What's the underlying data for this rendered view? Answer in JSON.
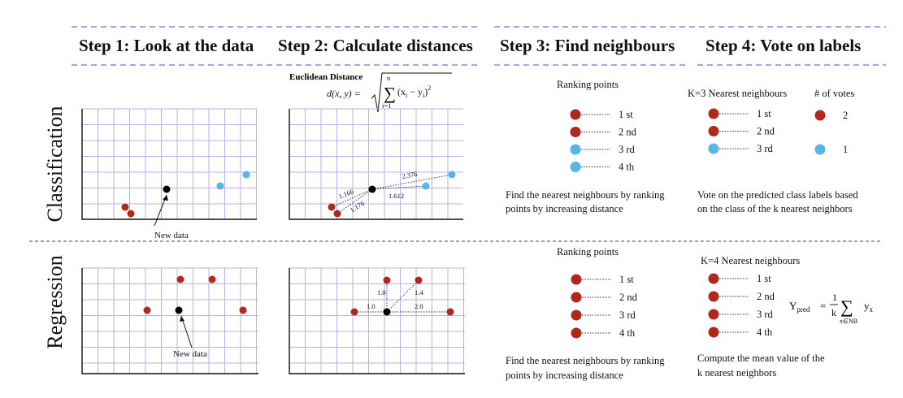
{
  "colors": {
    "red": "#b0271b",
    "blue": "#58b4e6",
    "black": "#000000",
    "grid": "#b7b2ea",
    "title_dash": "#8b86de"
  },
  "steps": [
    "Step 1: Look at the data",
    "Step 2: Calculate distances",
    "Step 3: Find neighbours",
    "Step 4: Vote on labels"
  ],
  "rows": {
    "classification": "Classification",
    "regression": "Regression"
  },
  "classification": {
    "new_data_label": "New data",
    "formula": {
      "title": "Euclidean Distance",
      "lhs": "d(x, y) =",
      "sum_top": "n",
      "sum_bottom": "i=1",
      "term": "(x",
      "term_sub1": "i",
      "term_mid": " − y",
      "term_sub2": "i",
      "term_end": ")",
      "power": "2"
    },
    "distances": [
      "1.166",
      "1.176",
      "1.612",
      "2.376"
    ],
    "ranking": {
      "title": "Ranking points",
      "items": [
        {
          "label": "1 st",
          "color": "red"
        },
        {
          "label": "2 nd",
          "color": "red"
        },
        {
          "label": "3 rd",
          "color": "blue"
        },
        {
          "label": "4 th",
          "color": "blue"
        }
      ],
      "caption": [
        "Find the nearest neighbours by ranking",
        "points by increasing distance"
      ]
    },
    "vote": {
      "title": "K=3 Nearest neighbours",
      "votes_title": "# of votes",
      "items": [
        {
          "label": "1 st",
          "color": "red"
        },
        {
          "label": "2 nd",
          "color": "red"
        },
        {
          "label": "3 rd",
          "color": "blue"
        }
      ],
      "votes": [
        {
          "color": "red",
          "count": "2"
        },
        {
          "color": "blue",
          "count": "1"
        }
      ],
      "caption": [
        "Vote on the predicted class labels based",
        "on the class of the k nearest neighbors"
      ]
    }
  },
  "regression": {
    "new_data_label": "New data",
    "distances": [
      "1.0",
      "1.4",
      "1.0",
      "2.0"
    ],
    "ranking": {
      "title": "Ranking points",
      "items": [
        {
          "label": "1 st",
          "color": "red"
        },
        {
          "label": "2 nd",
          "color": "red"
        },
        {
          "label": "3 rd",
          "color": "red"
        },
        {
          "label": "4 th",
          "color": "red"
        }
      ],
      "caption": [
        "Find the nearest neighbours by ranking",
        "points by increasing distance"
      ]
    },
    "mean": {
      "title": "K=4 Nearest neighbours",
      "items": [
        {
          "label": "1 st",
          "color": "red"
        },
        {
          "label": "2 nd",
          "color": "red"
        },
        {
          "label": "3 rd",
          "color": "red"
        },
        {
          "label": "4 th",
          "color": "red"
        }
      ],
      "formula": {
        "lhs": "Y",
        "lhs_sub": "pred",
        "eq": "=",
        "frac_top": "1",
        "frac_bottom": "k",
        "sum_sub": "x∈NB",
        "rhs": "y",
        "rhs_sub": "x"
      },
      "caption": [
        "Compute the mean value of the",
        "k nearest neighbors"
      ]
    }
  }
}
